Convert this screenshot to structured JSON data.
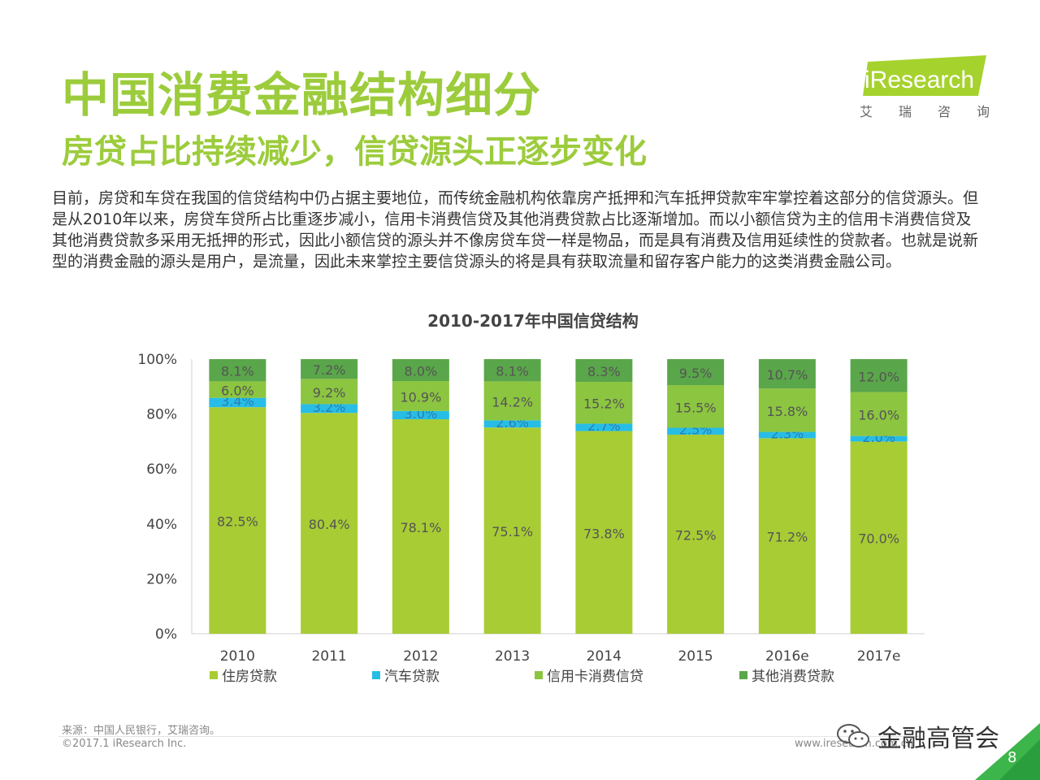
{
  "slide": {
    "title": "中国消费金融结构细分",
    "subtitle": "房贷占比持续减少，信贷源头正逐步变化",
    "intro": "目前，房贷和车贷在我国的信贷结构中仍占据主要地位，而传统金融机构依靠房产抵押和汽车抵押贷款牢牢掌控着这部分的信贷源头。但是从2010年以来，房贷车贷所占比重逐步减小，信用卡消费信贷及其他消费贷款占比逐渐增加。而以小额信贷为主的信用卡消费信贷及其他消费贷款多采用无抵押的形式，因此小额信贷的源头并不像房贷车贷一样是物品，而是具有消费及信用延续性的贷款者。也就是说新型的消费金融的源头是用户，是流量，因此未来掌控主要信贷源头的将是具有获取流量和留存客户能力的这类消费金融公司。",
    "logo_text": "iResearch",
    "logo_tag": [
      "艾",
      "瑞",
      "咨",
      "询"
    ],
    "source": "来源：中国人民银行，艾瑞咨询。",
    "copyright": "©2017.1 iResearch Inc.",
    "website": "www.iresearch.com.cn",
    "wechat_label": "金融高管会",
    "page_number": "8"
  },
  "colors": {
    "accent": "#9ccc3c",
    "housing": "#a8cc34",
    "auto": "#27bde6",
    "credit_card": "#8cc540",
    "other": "#5aa64a"
  },
  "chart_data": {
    "type": "bar",
    "stacked": true,
    "title": "2010-2017年中国信贷结构",
    "categories": [
      "2010",
      "2011",
      "2012",
      "2013",
      "2014",
      "2015",
      "2016e",
      "2017e"
    ],
    "series": [
      {
        "name": "住房贷款",
        "values": [
          82.5,
          80.4,
          78.1,
          75.1,
          73.8,
          72.5,
          71.2,
          70.0
        ],
        "labels": [
          "82.5%",
          "80.4%",
          "78.1%",
          "75.1%",
          "73.8%",
          "72.5%",
          "71.2%",
          "70.0%"
        ]
      },
      {
        "name": "汽车贷款",
        "values": [
          3.4,
          3.2,
          3.0,
          2.6,
          2.7,
          2.5,
          2.3,
          2.0
        ],
        "labels": [
          "3.4%",
          "3.2%",
          "3.0%",
          "2.6%",
          "2.7%",
          "2.5%",
          "2.3%",
          "2.0%"
        ]
      },
      {
        "name": "信用卡消费信贷",
        "values": [
          6.0,
          9.2,
          10.9,
          14.2,
          15.2,
          15.5,
          15.8,
          16.0
        ],
        "labels": [
          "6.0%",
          "9.2%",
          "10.9%",
          "14.2%",
          "15.2%",
          "15.5%",
          "15.8%",
          "16.0%"
        ]
      },
      {
        "name": "其他消费贷款",
        "values": [
          8.1,
          7.2,
          8.0,
          8.1,
          8.3,
          9.5,
          10.7,
          12.0
        ],
        "labels": [
          "8.1%",
          "7.2%",
          "8.0%",
          "8.1%",
          "8.3%",
          "9.5%",
          "10.7%",
          "12.0%"
        ]
      }
    ],
    "yticks": [
      "0%",
      "20%",
      "40%",
      "60%",
      "80%",
      "100%"
    ],
    "ylim": [
      0,
      100
    ],
    "legend_position": "bottom",
    "grid": false
  }
}
